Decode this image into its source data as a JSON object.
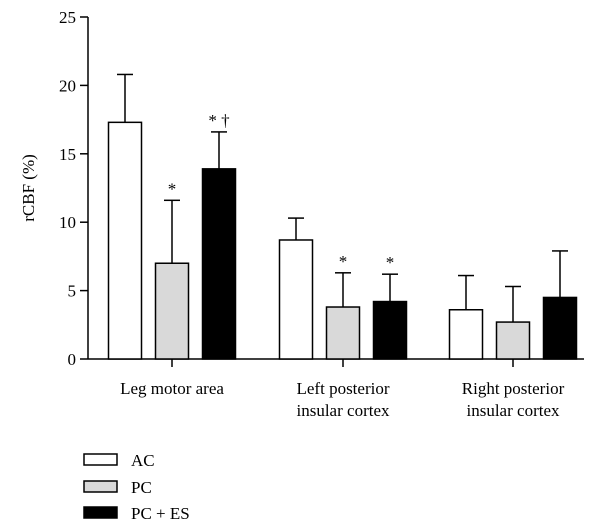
{
  "chart_data": {
    "type": "bar",
    "title": "",
    "xlabel": "",
    "ylabel": "rCBF (%)",
    "ylim": [
      0,
      25
    ],
    "yticks": [
      0,
      5,
      10,
      15,
      20,
      25
    ],
    "categories": [
      [
        "Leg motor area"
      ],
      [
        "Left posterior",
        "insular cortex"
      ],
      [
        "Right posterior",
        "insular cortex"
      ]
    ],
    "series": [
      {
        "name": "AC",
        "color": "#ffffff",
        "values": [
          17.3,
          8.7,
          3.6
        ],
        "errors": [
          3.5,
          1.6,
          2.5
        ],
        "marks": [
          "",
          "",
          ""
        ]
      },
      {
        "name": "PC",
        "color": "#d9d9d9",
        "values": [
          7.0,
          3.8,
          2.7
        ],
        "errors": [
          4.6,
          2.5,
          2.6
        ],
        "marks": [
          "*",
          "*",
          ""
        ]
      },
      {
        "name": "PC + ES",
        "color": "#000000",
        "values": [
          13.9,
          4.2,
          4.5
        ],
        "errors": [
          2.7,
          2.0,
          3.4
        ],
        "marks": [
          "* †",
          "*",
          ""
        ]
      }
    ],
    "legend_position": "bottom-left",
    "grid": false
  }
}
